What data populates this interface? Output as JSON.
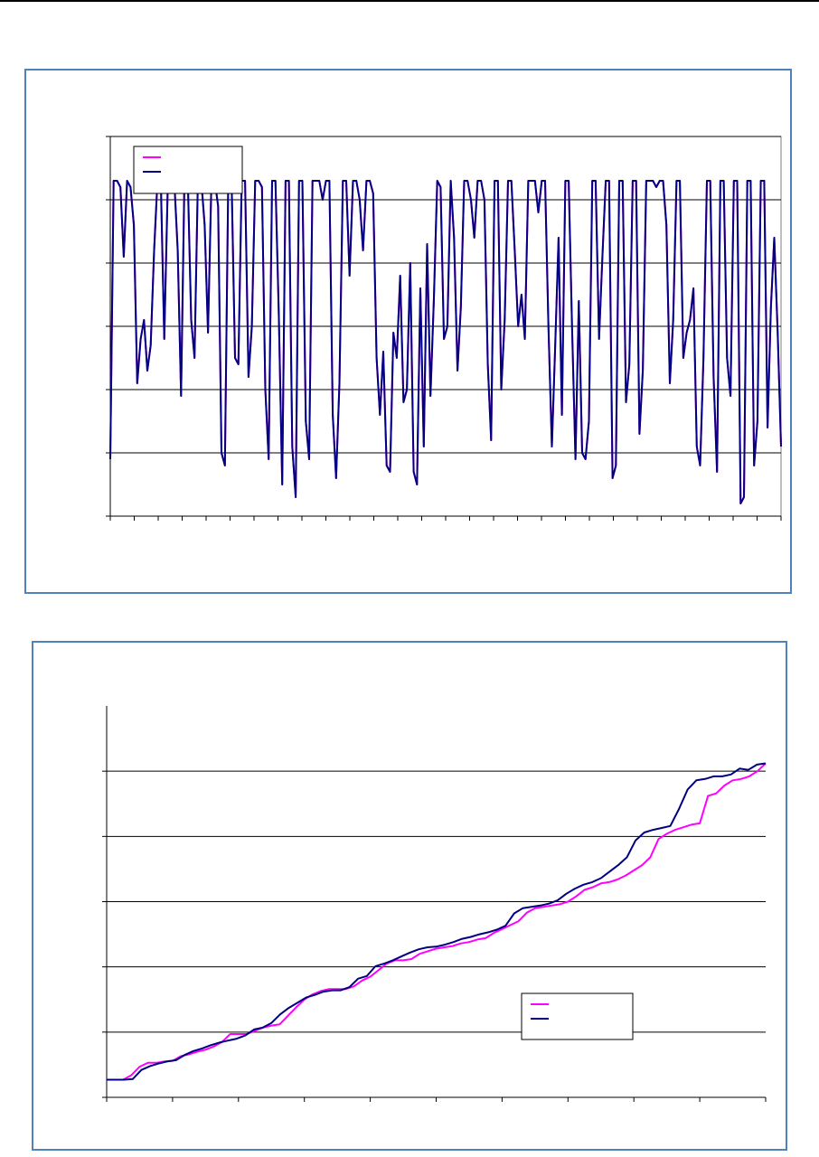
{
  "colors": {
    "panel_border": "#4f81bd",
    "series_a": "#ff00ff",
    "series_b": "#000080",
    "gridline": "#000000",
    "plot_frame": "#808080"
  },
  "chart_data": [
    {
      "type": "line",
      "title": "",
      "xlabel": "",
      "ylabel": "",
      "ylim": [
        0,
        6
      ],
      "gridlines": [
        1,
        2,
        3,
        4,
        5,
        6
      ],
      "grid": true,
      "x_tick_count": 28,
      "legend": {
        "position": "top-left",
        "entries": [
          "",
          ""
        ]
      },
      "pattern_seed": 7,
      "points": 200,
      "series": [
        {
          "values": [
            0.9,
            5.3,
            5.3,
            5.2,
            4.1,
            5.3,
            5.2,
            4.6,
            2.1,
            2.8,
            3.1,
            2.3,
            2.7,
            4.2,
            5.3,
            5.3,
            2.8,
            5.1,
            5.3,
            5.3,
            4.2,
            1.9,
            5.3,
            5.3,
            3.1,
            2.5,
            5.3,
            5.3,
            4.6,
            2.9,
            5.3,
            5.3,
            4.9,
            1.0,
            0.8,
            5.3,
            5.3,
            2.5,
            2.4,
            5.3,
            5.3,
            2.2,
            3.0,
            5.3,
            5.3,
            5.2,
            2.0,
            0.9,
            5.3,
            5.3,
            3.2,
            0.5,
            5.3,
            5.3,
            1.1,
            0.3,
            5.3,
            5.3,
            1.5,
            0.9,
            5.3,
            5.3,
            5.3,
            5.0,
            5.3,
            5.3,
            1.6,
            0.6,
            2.1,
            5.3,
            5.3,
            3.8,
            5.3,
            5.3,
            5.0,
            4.2,
            5.3,
            5.3,
            5.1,
            2.5,
            1.6,
            2.6,
            0.8,
            0.7,
            2.9,
            2.5,
            3.8,
            1.8,
            2.0,
            4.0,
            0.7,
            0.5,
            3.6,
            1.1,
            4.3,
            1.9,
            3.4,
            5.3,
            5.2,
            2.8,
            3.0,
            5.3,
            4.4,
            2.3,
            3.3,
            5.3,
            5.3,
            5.0,
            4.4,
            5.3,
            5.3,
            5.0,
            2.4,
            1.2,
            5.3,
            5.3,
            2.0,
            3.1,
            5.3,
            5.3,
            4.2,
            3.0,
            3.5,
            2.8,
            5.3,
            5.3,
            5.3,
            4.8,
            5.3,
            5.3,
            3.0,
            1.1,
            2.7,
            4.4,
            1.6,
            5.3,
            5.3,
            3.0,
            0.9,
            3.4,
            1.0,
            0.9,
            1.5,
            5.3,
            5.3,
            2.8,
            4.1,
            5.3,
            5.3,
            0.6,
            0.8,
            5.3,
            5.3,
            1.8,
            2.4,
            5.3,
            5.3,
            1.3,
            2.3,
            5.3,
            5.3,
            5.3,
            5.2,
            5.3,
            5.3,
            4.6,
            2.1,
            3.1,
            5.3,
            5.3,
            2.5,
            2.9,
            3.1,
            3.6,
            1.1,
            0.8,
            2.5,
            5.3,
            5.3,
            2.2,
            0.7,
            5.3,
            5.3,
            2.5,
            1.9,
            5.3,
            5.3,
            0.2,
            0.3,
            5.3,
            5.3,
            0.8,
            1.5,
            5.3,
            5.3,
            1.4,
            3.3,
            4.4,
            2.9,
            1.1
          ]
        },
        {
          "values": [
            0.9,
            5.3,
            5.3,
            5.2,
            4.1,
            5.3,
            5.2,
            4.6,
            2.1,
            2.8,
            3.1,
            2.3,
            2.7,
            4.2,
            5.3,
            5.3,
            2.8,
            5.1,
            5.3,
            5.3,
            4.2,
            1.9,
            5.3,
            5.3,
            3.1,
            2.5,
            5.3,
            5.3,
            4.6,
            2.9,
            5.3,
            5.3,
            4.9,
            1.0,
            0.8,
            5.3,
            5.3,
            2.5,
            2.4,
            5.3,
            5.3,
            2.2,
            3.0,
            5.3,
            5.3,
            5.2,
            2.0,
            0.9,
            5.3,
            5.3,
            3.2,
            0.5,
            5.3,
            5.3,
            1.1,
            0.3,
            5.3,
            5.3,
            1.5,
            0.9,
            5.3,
            5.3,
            5.3,
            5.0,
            5.3,
            5.3,
            1.6,
            0.6,
            2.1,
            5.3,
            5.3,
            3.8,
            5.3,
            5.3,
            5.0,
            4.2,
            5.3,
            5.3,
            5.1,
            2.5,
            1.6,
            2.6,
            0.8,
            0.7,
            2.9,
            2.5,
            3.8,
            1.8,
            2.0,
            4.0,
            0.7,
            0.5,
            3.6,
            1.1,
            4.3,
            1.9,
            3.4,
            5.3,
            5.2,
            2.8,
            3.0,
            5.3,
            4.4,
            2.3,
            3.3,
            5.3,
            5.3,
            5.0,
            4.4,
            5.3,
            5.3,
            5.0,
            2.4,
            1.2,
            5.3,
            5.3,
            2.0,
            3.1,
            5.3,
            5.3,
            4.2,
            3.0,
            3.5,
            2.8,
            5.3,
            5.3,
            5.3,
            4.8,
            5.3,
            5.3,
            3.0,
            1.1,
            2.7,
            4.4,
            1.6,
            5.3,
            5.3,
            3.0,
            0.9,
            3.4,
            1.0,
            0.9,
            1.5,
            5.3,
            5.3,
            2.8,
            4.1,
            5.3,
            5.3,
            0.6,
            0.8,
            5.3,
            5.3,
            1.8,
            2.4,
            5.3,
            5.3,
            1.3,
            2.3,
            5.3,
            5.3,
            5.3,
            5.2,
            5.3,
            5.3,
            4.6,
            2.1,
            3.1,
            5.3,
            5.3,
            2.5,
            2.9,
            3.1,
            3.6,
            1.1,
            0.8,
            2.5,
            5.3,
            5.3,
            2.2,
            0.7,
            5.3,
            5.3,
            2.5,
            1.9,
            5.3,
            5.3,
            0.2,
            0.3,
            5.3,
            5.3,
            0.8,
            1.5,
            5.3,
            5.3,
            1.4,
            3.3,
            4.4,
            2.9,
            1.1
          ]
        }
      ]
    },
    {
      "type": "line",
      "title": "",
      "xlabel": "",
      "ylabel": "",
      "ylim": [
        0,
        6
      ],
      "gridlines": [
        1,
        2,
        3,
        4,
        5
      ],
      "grid": true,
      "x_tick_count": 10,
      "legend": {
        "position": "bottom-right",
        "entries": [
          "",
          ""
        ]
      },
      "series": [
        {
          "values": [
            0.27,
            0.27,
            0.27,
            0.34,
            0.47,
            0.53,
            0.53,
            0.55,
            0.56,
            0.63,
            0.66,
            0.7,
            0.73,
            0.78,
            0.85,
            0.97,
            0.97,
            0.97,
            1.02,
            1.07,
            1.1,
            1.12,
            1.25,
            1.38,
            1.5,
            1.58,
            1.63,
            1.66,
            1.66,
            1.66,
            1.7,
            1.79,
            1.85,
            1.95,
            2.05,
            2.1,
            2.1,
            2.12,
            2.2,
            2.24,
            2.28,
            2.3,
            2.32,
            2.36,
            2.38,
            2.42,
            2.44,
            2.52,
            2.58,
            2.64,
            2.7,
            2.83,
            2.9,
            2.92,
            2.94,
            2.96,
            3.0,
            3.08,
            3.18,
            3.22,
            3.28,
            3.3,
            3.34,
            3.4,
            3.48,
            3.56,
            3.68,
            3.96,
            4.04,
            4.1,
            4.14,
            4.18,
            4.2,
            4.62,
            4.66,
            4.78,
            4.86,
            4.88,
            4.92,
            5.0,
            5.12
          ]
        },
        {
          "values": [
            0.27,
            0.27,
            0.27,
            0.28,
            0.42,
            0.48,
            0.52,
            0.55,
            0.57,
            0.65,
            0.71,
            0.75,
            0.8,
            0.84,
            0.87,
            0.9,
            0.95,
            1.04,
            1.07,
            1.14,
            1.27,
            1.37,
            1.45,
            1.53,
            1.57,
            1.62,
            1.64,
            1.64,
            1.69,
            1.82,
            1.86,
            2.01,
            2.05,
            2.1,
            2.16,
            2.22,
            2.27,
            2.3,
            2.31,
            2.34,
            2.38,
            2.43,
            2.46,
            2.5,
            2.53,
            2.57,
            2.63,
            2.82,
            2.9,
            2.92,
            2.94,
            2.97,
            3.02,
            3.12,
            3.2,
            3.26,
            3.3,
            3.36,
            3.46,
            3.56,
            3.68,
            3.94,
            4.06,
            4.1,
            4.13,
            4.16,
            4.42,
            4.72,
            4.86,
            4.88,
            4.92,
            4.92,
            4.95,
            5.04,
            5.02,
            5.1,
            5.12
          ]
        }
      ]
    }
  ]
}
